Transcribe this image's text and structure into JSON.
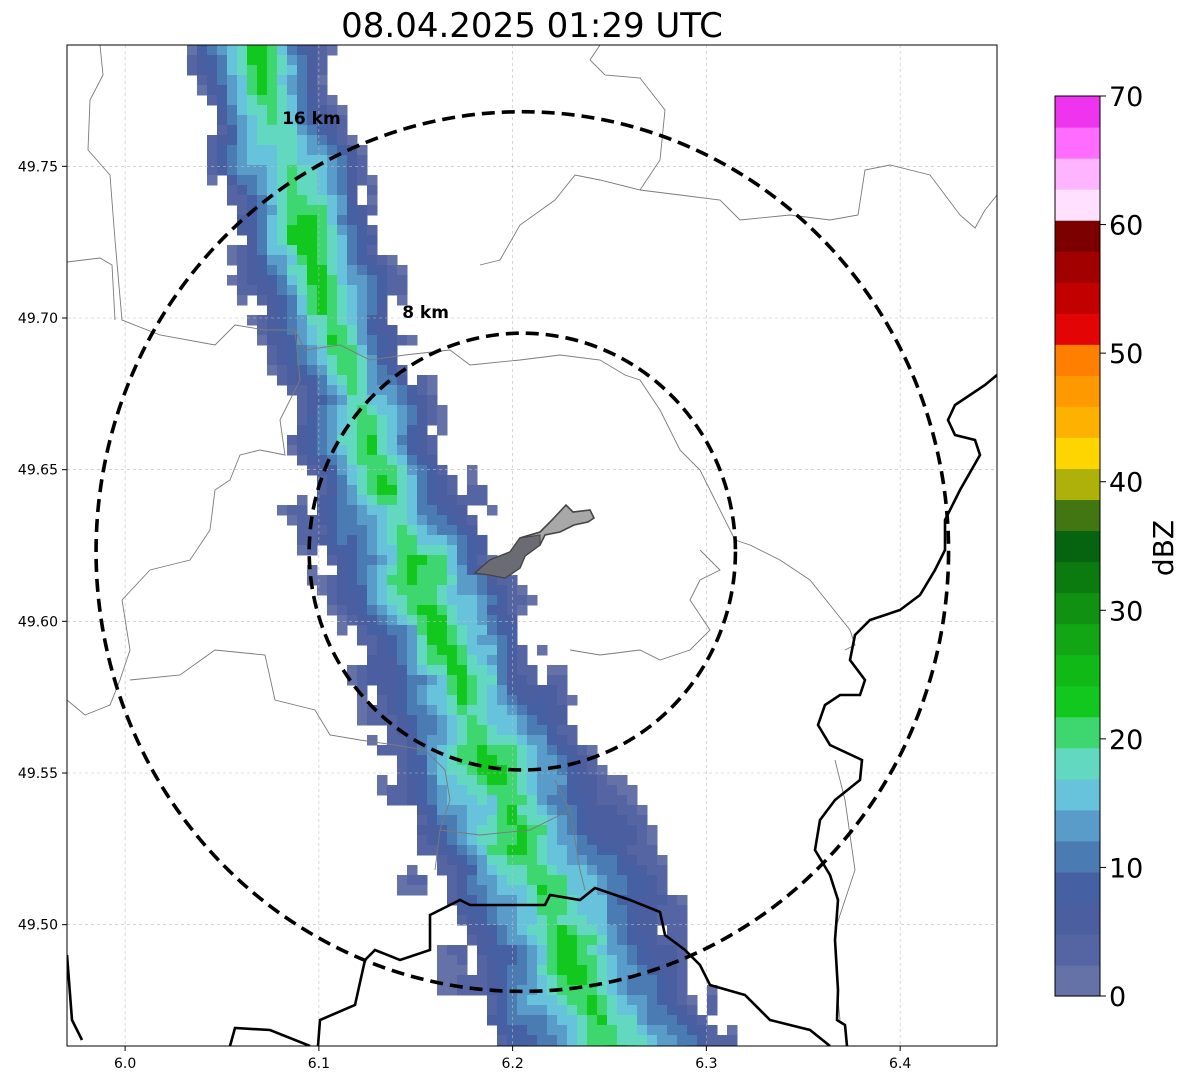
{
  "title": "08.04.2025 01:29 UTC",
  "map": {
    "xlim": [
      5.97,
      6.45
    ],
    "ylim": [
      49.46,
      49.79
    ],
    "x_ticks": [
      {
        "value": 6.0,
        "label": "6.0"
      },
      {
        "value": 6.1,
        "label": "6.1"
      },
      {
        "value": 6.2,
        "label": "6.2"
      },
      {
        "value": 6.3,
        "label": "6.3"
      },
      {
        "value": 6.4,
        "label": "6.4"
      }
    ],
    "y_ticks": [
      {
        "value": 49.5,
        "label": "49.50"
      },
      {
        "value": 49.55,
        "label": "49.55"
      },
      {
        "value": 49.6,
        "label": "49.60"
      },
      {
        "value": 49.65,
        "label": "49.65"
      },
      {
        "value": 49.7,
        "label": "49.70"
      },
      {
        "value": 49.75,
        "label": "49.75"
      }
    ],
    "grid": true,
    "center": {
      "lon": 6.205,
      "lat": 49.623
    },
    "rings": [
      {
        "label": "8 km",
        "lon_radius": 0.11,
        "lat_radius": 0.072,
        "label_lon": 6.143,
        "label_lat": 49.7
      },
      {
        "label": "16 km",
        "lon_radius": 0.22,
        "lat_radius": 0.145,
        "label_lon": 6.081,
        "label_lat": 49.764
      }
    ]
  },
  "colorbar": {
    "label": "dBZ",
    "min": 0,
    "max": 70,
    "ticks": [
      {
        "value": 0,
        "label": "0"
      },
      {
        "value": 10,
        "label": "10"
      },
      {
        "value": 20,
        "label": "20"
      },
      {
        "value": 30,
        "label": "30"
      },
      {
        "value": 40,
        "label": "40"
      },
      {
        "value": 50,
        "label": "50"
      },
      {
        "value": 60,
        "label": "60"
      },
      {
        "value": 70,
        "label": "70"
      }
    ],
    "colors": [
      "#6472a8",
      "#5565a3",
      "#4b5fa0",
      "#4561a4",
      "#4a7bb3",
      "#5a9cc9",
      "#67c2db",
      "#63d8c1",
      "#3dd66f",
      "#12c81e",
      "#11b917",
      "#12a614",
      "#109111",
      "#0b7b0f",
      "#066410",
      "#427612",
      "#aeb10a",
      "#ffd500",
      "#ffb100",
      "#ff9900",
      "#ff7f00",
      "#e30505",
      "#c20000",
      "#a10000",
      "#7d0000",
      "#ffe0ff",
      "#ffb4ff",
      "#ff6cff",
      "#ee34ee"
    ]
  },
  "colors": {
    "ring": "#000000",
    "border_thin": "#7a7a7a",
    "border_thick": "#000000",
    "grid": "#bbbbbb",
    "city_fill": "#a8a8a8",
    "city_fill_dark": "#6b6b74"
  }
}
